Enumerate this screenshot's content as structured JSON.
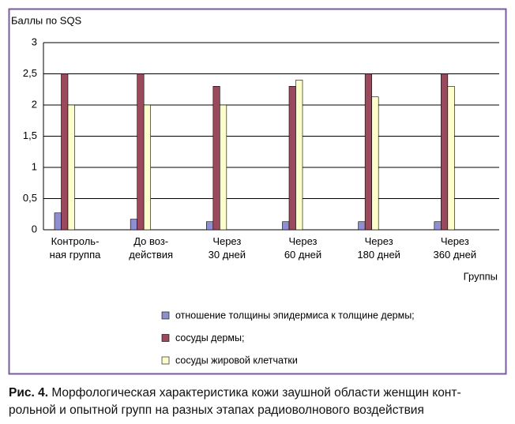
{
  "chart_data": {
    "type": "bar",
    "y_label": "Баллы по SQS",
    "x_label": "Группы",
    "categories": [
      "Контроль-\nная группа",
      "До воз-\nдействия",
      "Через\n30 дней",
      "Через\n60 дней",
      "Через\n180 дней",
      "Через\n360 дней"
    ],
    "series": [
      {
        "name": "отношение толщины эпидермиса к толщине дермы;",
        "color": "#8f8fcf",
        "values": [
          0.27,
          0.17,
          0.13,
          0.13,
          0.13,
          0.13
        ]
      },
      {
        "name": "сосуды дермы;",
        "color": "#9a4a5c",
        "values": [
          2.5,
          2.5,
          2.3,
          2.3,
          2.5,
          2.5
        ]
      },
      {
        "name": "сосуды жировой клетчатки",
        "color": "#ffffcc",
        "values": [
          2.0,
          2.0,
          2.0,
          2.4,
          2.13,
          2.3
        ]
      }
    ],
    "ylim": [
      0,
      3
    ],
    "yticks": [
      0,
      {
        "value": 0.5,
        "label": "0,5"
      },
      1,
      {
        "value": 1.5,
        "label": "1,5"
      },
      2,
      {
        "value": 2.5,
        "label": "2,5"
      },
      3
    ],
    "grid": true
  },
  "caption": {
    "label": "Рис. 4.",
    "text": "Морфологическая характеристика кожи заушной области женщин конт-\nрольной и опытной групп на разных этапах радиоволнового воздействия"
  }
}
